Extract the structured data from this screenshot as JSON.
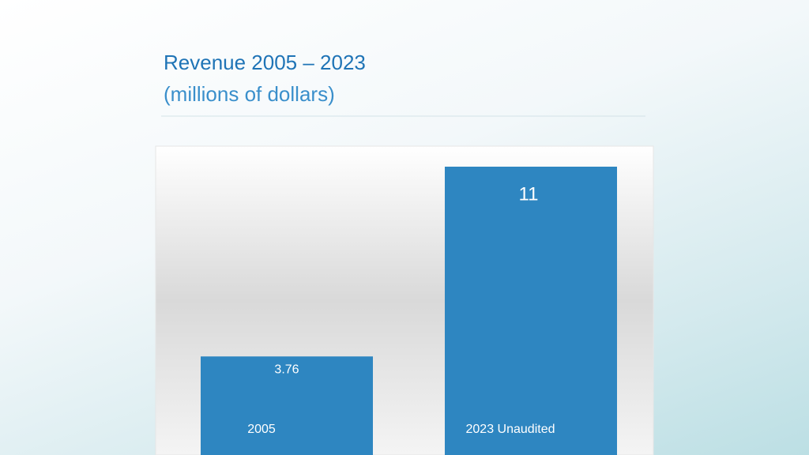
{
  "chart_data": {
    "type": "bar",
    "title": "Revenue 2005 – 2023",
    "subtitle": "(millions of dollars)",
    "categories": [
      "2005",
      "2023 Unaudited"
    ],
    "values": [
      3.76,
      11
    ],
    "color": "#2e86c1"
  }
}
